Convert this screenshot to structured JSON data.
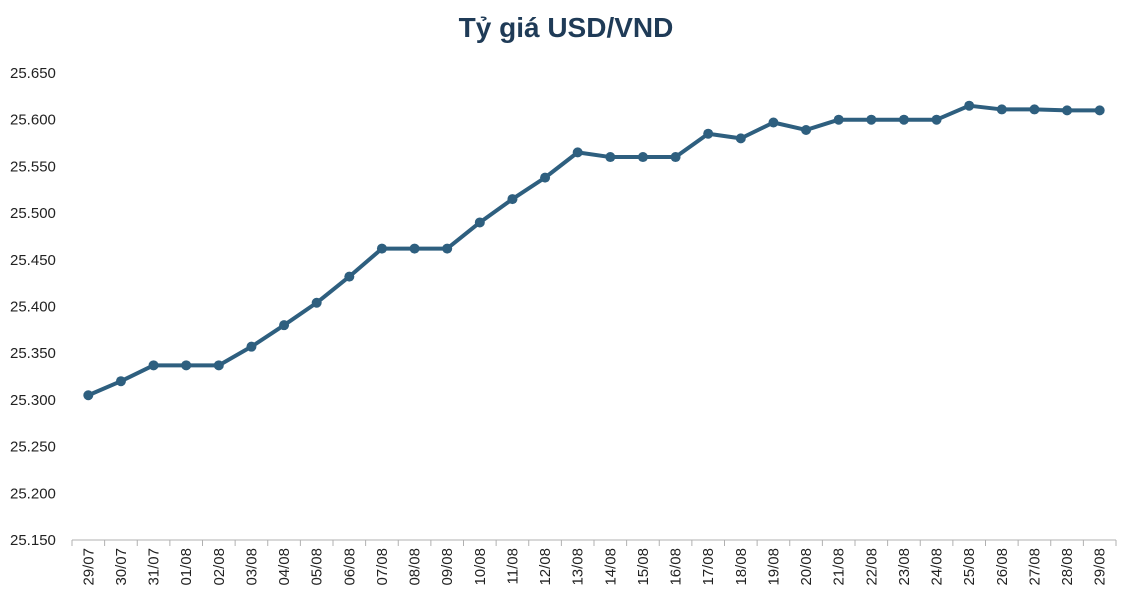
{
  "chart_data": {
    "type": "line",
    "title": "Tỷ giá USD/VND",
    "xlabel": "",
    "ylabel": "",
    "ylim": [
      25150,
      25650
    ],
    "yticks": [
      25150,
      25200,
      25250,
      25300,
      25350,
      25400,
      25450,
      25500,
      25550,
      25600,
      25650
    ],
    "ytick_labels": [
      "25.150",
      "25.200",
      "25.250",
      "25.300",
      "25.350",
      "25.400",
      "25.450",
      "25.500",
      "25.550",
      "25.600",
      "25.650"
    ],
    "grid": false,
    "legend": "none",
    "categories": [
      "29/07",
      "30/07",
      "31/07",
      "01/08",
      "02/08",
      "03/08",
      "04/08",
      "05/08",
      "06/08",
      "07/08",
      "08/08",
      "09/08",
      "10/08",
      "11/08",
      "12/08",
      "13/08",
      "14/08",
      "15/08",
      "16/08",
      "17/08",
      "18/08",
      "19/08",
      "20/08",
      "21/08",
      "22/08",
      "23/08",
      "24/08",
      "25/08",
      "26/08",
      "27/08",
      "28/08",
      "29/08"
    ],
    "series": [
      {
        "values": [
          25305,
          25320,
          25337,
          25337,
          25337,
          25357,
          25380,
          25404,
          25432,
          25462,
          25462,
          25462,
          25490,
          25515,
          25538,
          25565,
          25560,
          25560,
          25560,
          25585,
          25580,
          25597,
          25589,
          25600,
          25600,
          25600,
          25600,
          25615,
          25611,
          25611,
          25610,
          25610
        ]
      }
    ],
    "colors": {
      "line": "#2e5f7f",
      "title": "#1f3b57",
      "axis": "#b0b0b0"
    }
  }
}
